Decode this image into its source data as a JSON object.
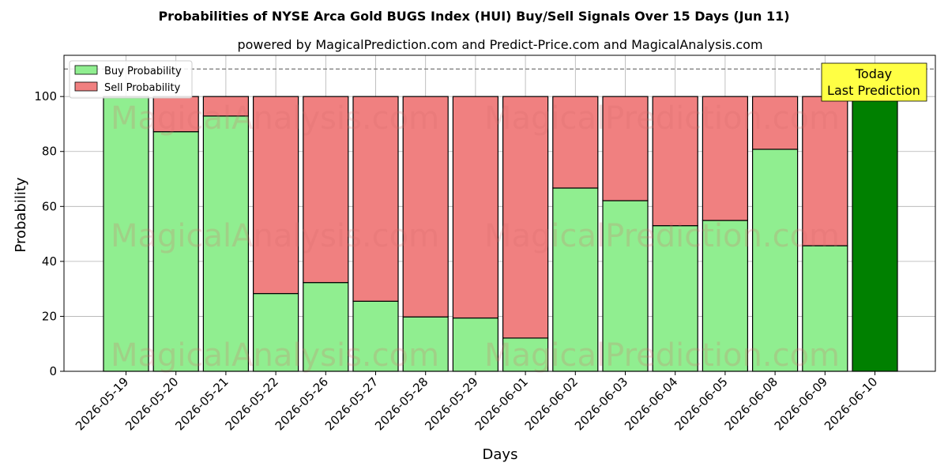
{
  "chart_data": {
    "type": "bar",
    "title": "Probabilities of NYSE Arca Gold BUGS Index (HUI) Buy/Sell Signals Over 15 Days (Jun 11)",
    "subtitle": "powered by MagicalPrediction.com and Predict-Price.com and MagicalAnalysis.com",
    "xlabel": "Days",
    "ylabel": "Probability",
    "ylim": [
      0,
      115
    ],
    "yticks": [
      0,
      20,
      40,
      60,
      80,
      100
    ],
    "grid": true,
    "legend_position": "top-left",
    "reference_line": 110,
    "categories": [
      "2026-05-19",
      "2026-05-20",
      "2026-05-21",
      "2026-05-22",
      "2026-05-26",
      "2026-05-27",
      "2026-05-28",
      "2026-05-29",
      "2026-06-01",
      "2026-06-02",
      "2026-06-03",
      "2026-06-04",
      "2026-06-05",
      "2026-06-08",
      "2026-06-09",
      "2026-06-10"
    ],
    "series": [
      {
        "name": "Buy Probability",
        "color": "#90ee90",
        "values": [
          100,
          87.2,
          92.9,
          28.3,
          32.3,
          25.5,
          19.8,
          19.4,
          12.1,
          66.7,
          62.1,
          53.0,
          54.9,
          80.8,
          45.7,
          100
        ]
      },
      {
        "name": "Sell Probability",
        "color": "#f08080",
        "values": [
          0,
          12.8,
          7.1,
          71.7,
          67.7,
          74.5,
          80.2,
          80.6,
          87.9,
          33.3,
          37.9,
          47.0,
          45.1,
          19.2,
          54.3,
          0
        ]
      }
    ],
    "today_index": 15,
    "today_color": "#008000",
    "annotation": {
      "line1": "Today",
      "line2": "Last Prediction",
      "color": "#ffff44"
    },
    "watermarks": [
      "MagicalAnalysis.com",
      "MagicalPrediction.com"
    ]
  }
}
